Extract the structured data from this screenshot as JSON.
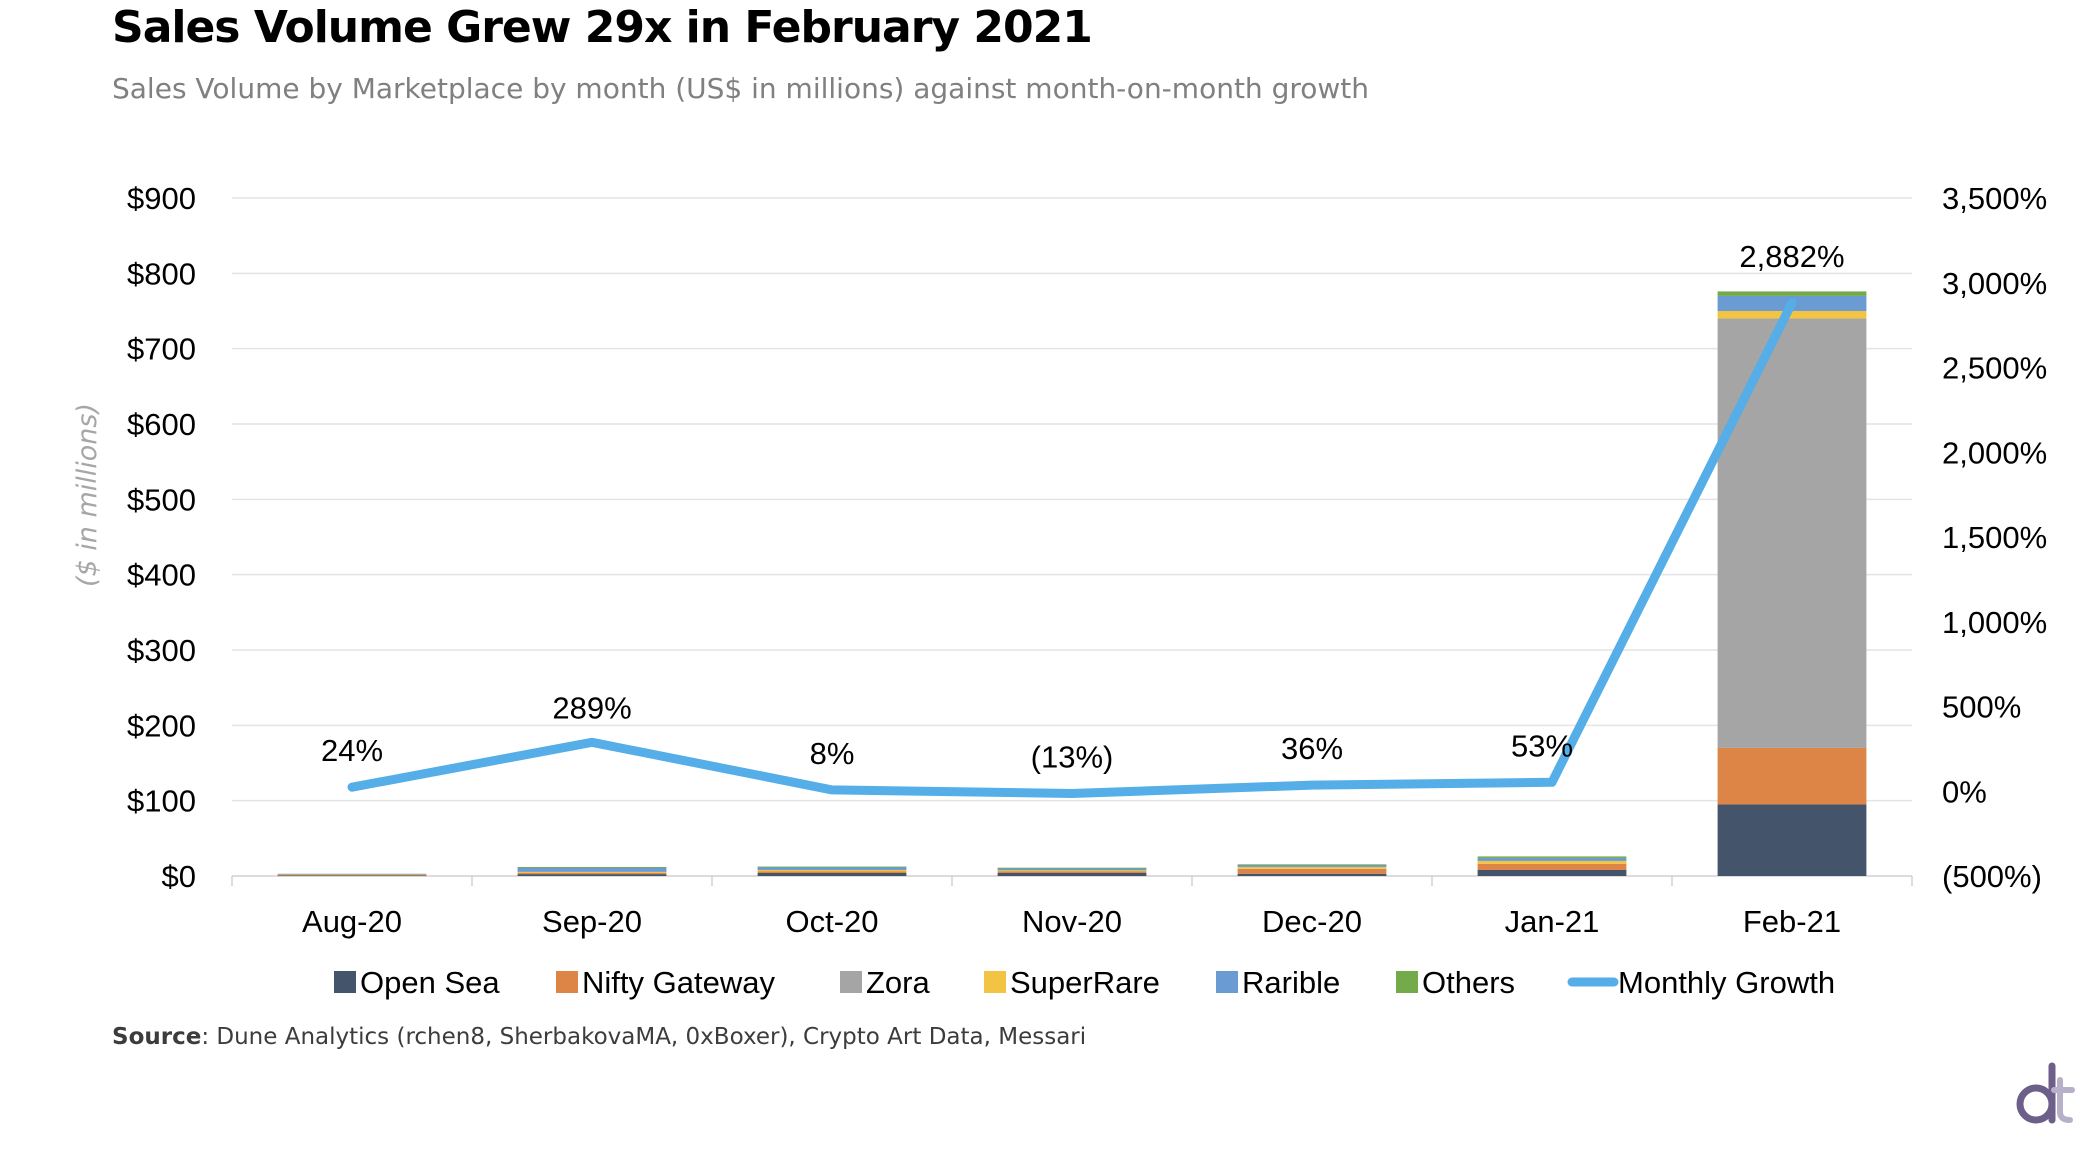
{
  "title": "Sales Volume Grew 29x in February 2021",
  "subtitle": "Sales Volume by Marketplace by month  (US$ in millions) against month-on-month growth",
  "source": {
    "label": "Source",
    "text": ": Dune Analytics (rchen8, SherbakovaMA, 0xBoxer), Crypto Art Data, Messari"
  },
  "colors": {
    "Open Sea": "#44546a",
    "Nifty Gateway": "#dd8447",
    "Zora": "#a5a5a5",
    "SuperRare": "#f3c443",
    "Rarible": "#6a9bd2",
    "Others": "#74ab4a",
    "Monthly Growth": "#55aee8"
  },
  "chart_data": {
    "type": "bar",
    "stacked": true,
    "categories": [
      "Aug-20",
      "Sep-20",
      "Oct-20",
      "Nov-20",
      "Dec-20",
      "Jan-21",
      "Feb-21"
    ],
    "ylabel": "($ in millions)",
    "ylim": [
      0,
      900
    ],
    "yticks": [
      "$0",
      "$100",
      "$200",
      "$300",
      "$400",
      "$500",
      "$600",
      "$700",
      "$800",
      "$900"
    ],
    "y2lim": [
      -500,
      3500
    ],
    "y2ticks": [
      "(500%)",
      "0%",
      "500%",
      "1,000%",
      "1,500%",
      "2,000%",
      "2,500%",
      "3,000%",
      "3,500%"
    ],
    "grid": true,
    "legend": "bottom",
    "series": [
      {
        "name": "Open Sea",
        "values": [
          1.0,
          2.5,
          4.0,
          4.0,
          3.0,
          8.0,
          95.0
        ]
      },
      {
        "name": "Nifty Gateway",
        "values": [
          0.5,
          1.5,
          2.0,
          2.0,
          6.5,
          8.0,
          75.0
        ]
      },
      {
        "name": "Zora",
        "values": [
          0.0,
          0.0,
          0.0,
          0.0,
          0.0,
          0.0,
          570.0
        ]
      },
      {
        "name": "SuperRare",
        "values": [
          1.0,
          1.5,
          2.0,
          1.5,
          2.5,
          4.0,
          10.0
        ]
      },
      {
        "name": "Rarible",
        "values": [
          0.5,
          6.0,
          4.0,
          3.0,
          3.0,
          4.0,
          20.0
        ]
      },
      {
        "name": "Others",
        "values": [
          0.0,
          0.5,
          0.5,
          0.5,
          0.5,
          2.0,
          6.0
        ]
      }
    ],
    "line": {
      "name": "Monthly Growth",
      "values": [
        24,
        289,
        8,
        -13,
        36,
        53,
        2882
      ],
      "labels": [
        "24%",
        "289%",
        "8%",
        "(13%)",
        "36%",
        "53%",
        "2,882%"
      ]
    }
  }
}
